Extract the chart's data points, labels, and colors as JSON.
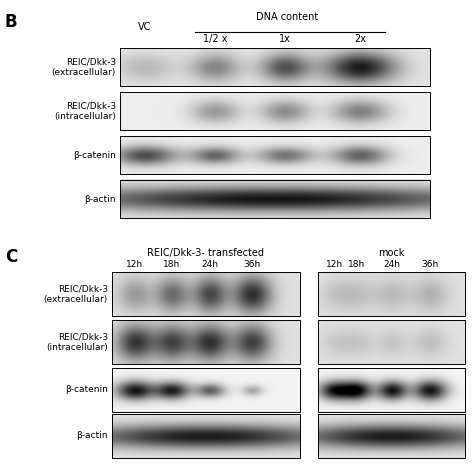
{
  "background_color": "#ffffff",
  "fig_width": 4.74,
  "fig_height": 4.74,
  "dpi": 100,
  "panel_B": {
    "label": "B",
    "vc_label": "VC",
    "dna_header": "DNA content",
    "col_labels": [
      "1/2 x",
      "1x",
      "2x"
    ],
    "row_labels": [
      "REIC/Dkk-3\n(extracellular)",
      "REIC/Dkk-3\n(intracellular)",
      "β-catenin",
      "β-actin"
    ]
  },
  "panel_C": {
    "label": "C",
    "left_header": "REIC/Dkk-3- transfected",
    "right_header": "mock",
    "col_labels": [
      "12h",
      "18h",
      "24h",
      "36h"
    ],
    "row_labels": [
      "REIC/Dkk-3\n(extracellular)",
      "REIC/Dkk-3\n(intracellular)",
      "β-catenin",
      "β-actin"
    ]
  }
}
